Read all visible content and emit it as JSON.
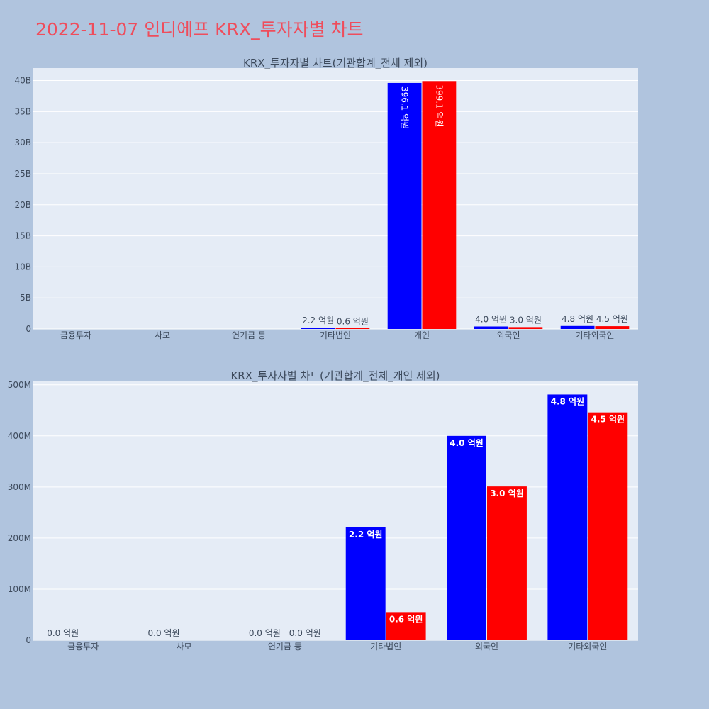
{
  "page": {
    "title": "2022-11-07 인디에프 KRX_투자자별 차트"
  },
  "colors": {
    "background": "#b0c4de",
    "plot_bg": "#e5ecf6",
    "grid": "#ffffff",
    "buy": "#0000ff",
    "sell": "#ff0000",
    "title": "#ef4d5c",
    "text": "#3d4a5c"
  },
  "chart_data": [
    {
      "type": "bar",
      "title": "KRX_투자자별 차트(기관합계_전체 제외)",
      "categories": [
        "금융투자",
        "사모",
        "연기금 등",
        "기타법인",
        "개인",
        "외국인",
        "기타외국인"
      ],
      "series": [
        {
          "color": "#0000ff",
          "values": [
            0,
            0,
            0,
            220000000,
            39610000000,
            400000000,
            480000000
          ],
          "labels": [
            "",
            "",
            "",
            "2.2 억원",
            "396.1 억원",
            "4.0 억원",
            "4.8 억원"
          ]
        },
        {
          "color": "#ff0000",
          "values": [
            0,
            0,
            0,
            55000000,
            39910000000,
            300000000,
            445000000
          ],
          "labels": [
            "",
            "",
            "",
            "0.6 억원",
            "399.1 억원",
            "3.0 억원",
            "4.5 억원"
          ]
        }
      ],
      "ylim": [
        0,
        42000000000
      ],
      "yticks": [
        0,
        5000000000,
        10000000000,
        15000000000,
        20000000000,
        25000000000,
        30000000000,
        35000000000,
        40000000000
      ],
      "yticklabels": [
        "0",
        "5B",
        "10B",
        "15B",
        "20B",
        "25B",
        "30B",
        "35B",
        "40B"
      ],
      "grid": true
    },
    {
      "type": "bar",
      "title": "KRX_투자자별 차트(기관합계_전체_개인 제외)",
      "categories": [
        "금융투자",
        "사모",
        "연기금 등",
        "기타법인",
        "외국인",
        "기타외국인"
      ],
      "series": [
        {
          "color": "#0000ff",
          "values": [
            0,
            0,
            0,
            221000000,
            400000000,
            481000000
          ],
          "labels": [
            "0.0 억원",
            "0.0 억원",
            "0.0 억원",
            "2.2 억원",
            "4.0 억원",
            "4.8 억원"
          ]
        },
        {
          "color": "#ff0000",
          "values": [
            0,
            0,
            0,
            55000000,
            301000000,
            446000000
          ],
          "labels": [
            "",
            "",
            "0.0 억원",
            "0.6 억원",
            "3.0 억원",
            "4.5 억원"
          ]
        }
      ],
      "ylim": [
        0,
        508000000
      ],
      "yticks": [
        0,
        100000000,
        200000000,
        300000000,
        400000000,
        500000000
      ],
      "yticklabels": [
        "0",
        "100M",
        "200M",
        "300M",
        "400M",
        "500M"
      ],
      "grid": true
    }
  ]
}
